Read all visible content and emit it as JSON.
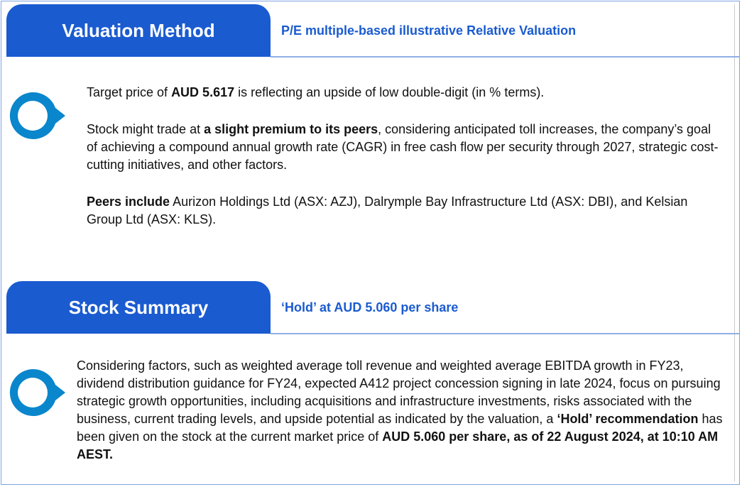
{
  "valuation": {
    "tab_label": "Valuation Method",
    "subtitle": "P/E multiple-based illustrative Relative Valuation",
    "icon": "pin-circle-icon",
    "p1": {
      "a": "Target price of ",
      "b": "AUD 5.617",
      "c": " is reflecting an upside of low double-digit (in % terms)."
    },
    "p2": {
      "a": "Stock might trade at ",
      "b": "a slight premium to its peers",
      "c": ", considering anticipated toll increases, the company’s goal of achieving a compound annual growth rate (CAGR) in free cash flow per security through 2027, strategic cost-cutting initiatives, and other factors."
    },
    "p3": {
      "b": "Peers include",
      "c": " Aurizon Holdings Ltd (ASX: AZJ), Dalrymple Bay Infrastructure Ltd (ASX: DBI), and Kelsian Group Ltd (ASX: KLS)."
    }
  },
  "summary": {
    "tab_label": "Stock Summary",
    "subtitle": "‘Hold’ at AUD 5.060 per share",
    "icon": "pin-circle-icon",
    "p1": {
      "a": "Considering factors, such as weighted average toll revenue and weighted average EBITDA growth in FY23, dividend distribution guidance for FY24, expected A412 project concession signing in late 2024, focus on pursuing strategic growth opportunities, including acquisitions and infrastructure investments, risks associated with the business, current trading levels, and upside potential as indicated by the valuation, a ",
      "b": "‘Hold’ recommendation",
      "c": " has been given on the stock at the current market price of ",
      "d": "AUD 5.060 per share, as of 22 August 2024, at 10:10 AM AEST."
    }
  },
  "colors": {
    "accent": "#1a5bd0",
    "icon": "#0a86cc"
  }
}
